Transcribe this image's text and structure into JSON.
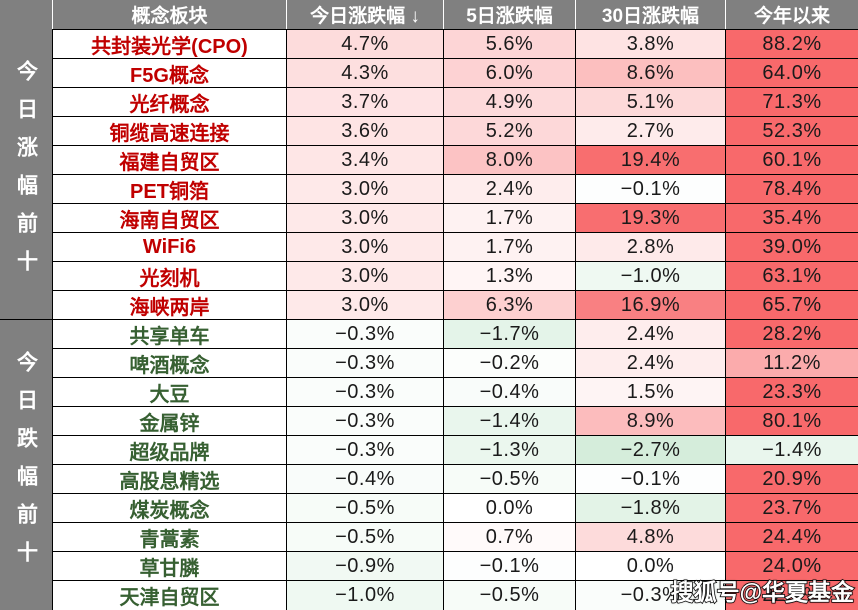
{
  "colors": {
    "header_bg": "#808080",
    "header_text": "#ffffff",
    "sidebar_bg": "#808080",
    "sidebar_text": "#ffffff",
    "grid_border": "#000000",
    "header_separator": "#ffffff",
    "gainer_name": "#c00000",
    "loser_name": "#376032",
    "value_text": "#1a1a1a",
    "heat_mid": "#ffffff",
    "heat_positive_max": "#f8696b",
    "heat_negative_max": "#63be7b"
  },
  "heat_scale": {
    "positive_full_pct": 20,
    "negative_full_pct": 10
  },
  "sidebar": {
    "gainers_label": "今日涨幅前十",
    "losers_label": "今日跌幅前十"
  },
  "watermark": "搜狐号@华夏基金",
  "chart_data": {
    "type": "table",
    "unit": "%",
    "columns": [
      "概念板块",
      "今日涨跌幅 ↓",
      "5日涨跌幅",
      "30日涨跌幅",
      "今年以来"
    ],
    "sort_column": "今日涨跌幅",
    "sort_direction": "desc",
    "groups": [
      {
        "id": "gainers",
        "label": "今日涨幅前十"
      },
      {
        "id": "losers",
        "label": "今日跌幅前十"
      }
    ],
    "rows": [
      {
        "name": "共封装光学(CPO)",
        "group": "gainers",
        "values": [
          4.7,
          5.6,
          3.8,
          88.2
        ]
      },
      {
        "name": "F5G概念",
        "group": "gainers",
        "values": [
          4.3,
          6.0,
          8.6,
          64.0
        ]
      },
      {
        "name": "光纤概念",
        "group": "gainers",
        "values": [
          3.7,
          4.9,
          5.1,
          71.3
        ]
      },
      {
        "name": "铜缆高速连接",
        "group": "gainers",
        "values": [
          3.6,
          5.2,
          2.7,
          52.3
        ]
      },
      {
        "name": "福建自贸区",
        "group": "gainers",
        "values": [
          3.4,
          8.0,
          19.4,
          60.1
        ]
      },
      {
        "name": "PET铜箔",
        "group": "gainers",
        "values": [
          3.0,
          2.4,
          -0.1,
          78.4
        ]
      },
      {
        "name": "海南自贸区",
        "group": "gainers",
        "values": [
          3.0,
          1.7,
          19.3,
          35.4
        ]
      },
      {
        "name": "WiFi6",
        "group": "gainers",
        "values": [
          3.0,
          1.7,
          2.8,
          39.0
        ]
      },
      {
        "name": "光刻机",
        "group": "gainers",
        "values": [
          3.0,
          1.3,
          -1.0,
          63.1
        ]
      },
      {
        "name": "海峡两岸",
        "group": "gainers",
        "values": [
          3.0,
          6.3,
          16.9,
          65.7
        ]
      },
      {
        "name": "共享单车",
        "group": "losers",
        "values": [
          -0.3,
          -1.7,
          2.4,
          28.2
        ]
      },
      {
        "name": "啤酒概念",
        "group": "losers",
        "values": [
          -0.3,
          -0.2,
          2.4,
          11.2
        ]
      },
      {
        "name": "大豆",
        "group": "losers",
        "values": [
          -0.3,
          -0.4,
          1.5,
          23.3
        ]
      },
      {
        "name": "金属锌",
        "group": "losers",
        "values": [
          -0.3,
          -1.4,
          8.9,
          80.1
        ]
      },
      {
        "name": "超级品牌",
        "group": "losers",
        "values": [
          -0.3,
          -1.3,
          -2.7,
          -1.4
        ]
      },
      {
        "name": "高股息精选",
        "group": "losers",
        "values": [
          -0.4,
          -0.5,
          -0.1,
          20.9
        ]
      },
      {
        "name": "煤炭概念",
        "group": "losers",
        "values": [
          -0.5,
          0.0,
          -1.8,
          23.7
        ]
      },
      {
        "name": "青蒿素",
        "group": "losers",
        "values": [
          -0.5,
          0.7,
          4.8,
          24.4
        ]
      },
      {
        "name": "草甘膦",
        "group": "losers",
        "values": [
          -0.9,
          -0.1,
          0.0,
          24.0
        ]
      },
      {
        "name": "天津自贸区",
        "group": "losers",
        "values": [
          -1.0,
          -0.5,
          -0.3,
          22.4
        ]
      }
    ]
  }
}
